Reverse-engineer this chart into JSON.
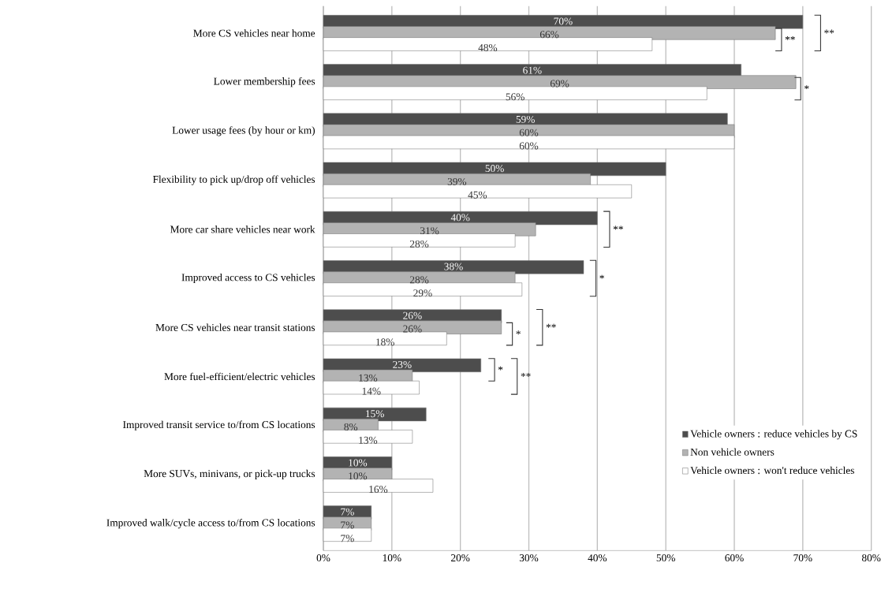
{
  "chart_data": {
    "type": "bar",
    "orientation": "horizontal",
    "categories": [
      "More CS vehicles near home",
      "Lower membership fees",
      "Lower usage fees (by hour or km)",
      "Flexibility to pick up/drop off vehicles",
      "More car share vehicles near work",
      "Improved access to CS vehicles",
      "More CS vehicles near transit stations",
      "More fuel-efficient/electric vehicles",
      "Improved transit service to/from CS locations",
      "More SUVs, minivans, or pick-up trucks",
      "Improved walk/cycle access to/from CS locations"
    ],
    "series": [
      {
        "name": "Vehicle owners : reduce vehicles by CS",
        "color": "#4d4d4d",
        "values": [
          70,
          61,
          59,
          50,
          40,
          38,
          26,
          23,
          15,
          10,
          7
        ],
        "value_labels": [
          "70%",
          "61%",
          "59%",
          "50%",
          "40%",
          "38%",
          "26%",
          "23%",
          "15%",
          "10%",
          "7%"
        ]
      },
      {
        "name": "Non vehicle owners",
        "color": "#b3b3b3",
        "values": [
          66,
          69,
          60,
          39,
          31,
          28,
          26,
          13,
          8,
          10,
          7
        ],
        "value_labels": [
          "66%",
          "69%",
          "60%",
          "39%",
          "31%",
          "28%",
          "26%",
          "13%",
          "8%",
          "10%",
          "7%"
        ]
      },
      {
        "name": "Vehicle owners : won't reduce vehicles",
        "color": "#ffffff",
        "values": [
          48,
          56,
          60,
          45,
          28,
          29,
          18,
          14,
          13,
          16,
          7
        ],
        "value_labels": [
          "48%",
          "56%",
          "60%",
          "45%",
          "28%",
          "29%",
          "18%",
          "14%",
          "13%",
          "16%",
          "7%"
        ]
      }
    ],
    "xlim": [
      0,
      80
    ],
    "xticks": [
      {
        "value": 0,
        "label": "0%"
      },
      {
        "value": 10,
        "label": "10%"
      },
      {
        "value": 20,
        "label": "20%"
      },
      {
        "value": 30,
        "label": "30%"
      },
      {
        "value": 40,
        "label": "40%"
      },
      {
        "value": 50,
        "label": "50%"
      },
      {
        "value": 60,
        "label": "60%"
      },
      {
        "value": 70,
        "label": "70%"
      },
      {
        "value": 80,
        "label": "80%"
      }
    ],
    "grid": "x",
    "legend": "bottom right",
    "annotations": [
      "**",
      "**",
      "*",
      "**",
      "*",
      "*",
      "**",
      "*",
      "**"
    ]
  }
}
